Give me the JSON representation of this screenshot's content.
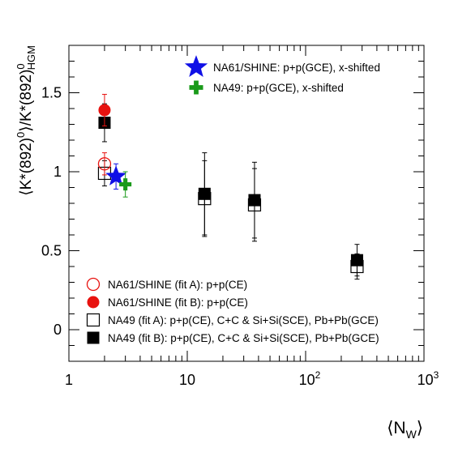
{
  "chart_data": {
    "type": "scatter",
    "x_scale": "log",
    "y_scale": "linear",
    "xlim": [
      1,
      1000
    ],
    "ylim": [
      -0.2,
      1.8
    ],
    "grid": false,
    "x_ticks": [
      {
        "value": 1,
        "label": "1"
      },
      {
        "value": 10,
        "label": "10"
      },
      {
        "value": 100,
        "label": "10",
        "exp": "2"
      },
      {
        "value": 1000,
        "label": "10",
        "exp": "3"
      }
    ],
    "y_ticks": [
      {
        "value": 0,
        "label": "0"
      },
      {
        "value": 0.5,
        "label": "0.5"
      },
      {
        "value": 1,
        "label": "1"
      },
      {
        "value": 1.5,
        "label": "1.5"
      }
    ],
    "xlabel": {
      "pre": "⟨N",
      "sub": "W",
      "post": "⟩"
    },
    "ylabel": {
      "a": "⟨K*(892)",
      "a_sup": "0",
      "b": "⟩/K*(892)",
      "b_sup": "0",
      "b_sub": "HGM"
    },
    "series": [
      {
        "name": "NA61/SHINE (fit A): p+p(CE)",
        "marker": "open-circle",
        "color": "#e8120f",
        "points": [
          {
            "x": 2,
            "y": 1.05,
            "err": 0.07
          }
        ]
      },
      {
        "name": "NA61/SHINE (fit B): p+p(CE)",
        "marker": "filled-circle",
        "color": "#e8120f",
        "points": [
          {
            "x": 2,
            "y": 1.39,
            "err": 0.1
          }
        ]
      },
      {
        "name": "NA49 (fit A): p+p(CE), C+C & Si+Si(SCE), Pb+Pb(GCE)",
        "marker": "open-square",
        "color": "#000000",
        "points": [
          {
            "x": 2,
            "y": 0.99,
            "err": 0.08
          },
          {
            "x": 14,
            "y": 0.83,
            "err": 0.24
          },
          {
            "x": 37,
            "y": 0.79,
            "err": 0.23
          },
          {
            "x": 272,
            "y": 0.4,
            "err": 0.08
          }
        ]
      },
      {
        "name": "NA49 (fit B): p+p(CE), C+C & Si+Si(SCE), Pb+Pb(GCE)",
        "marker": "filled-square",
        "color": "#000000",
        "points": [
          {
            "x": 2,
            "y": 1.31,
            "err": 0.12
          },
          {
            "x": 14,
            "y": 0.86,
            "err": 0.26
          },
          {
            "x": 37,
            "y": 0.82,
            "err": 0.24
          },
          {
            "x": 272,
            "y": 0.44,
            "err": 0.1
          }
        ]
      },
      {
        "name": "NA61/SHINE: p+p(GCE), x-shifted",
        "marker": "star",
        "color": "#1010e6",
        "points": [
          {
            "x": 2.5,
            "y": 0.97,
            "err": 0.08
          }
        ]
      },
      {
        "name": "NA49: p+p(GCE), x-shifted",
        "marker": "cross",
        "color": "#1a9a1a",
        "points": [
          {
            "x": 3,
            "y": 0.92,
            "err": 0.08
          }
        ]
      }
    ],
    "legend_top": [
      4,
      5
    ],
    "legend_bottom": [
      0,
      1,
      2,
      3
    ]
  }
}
